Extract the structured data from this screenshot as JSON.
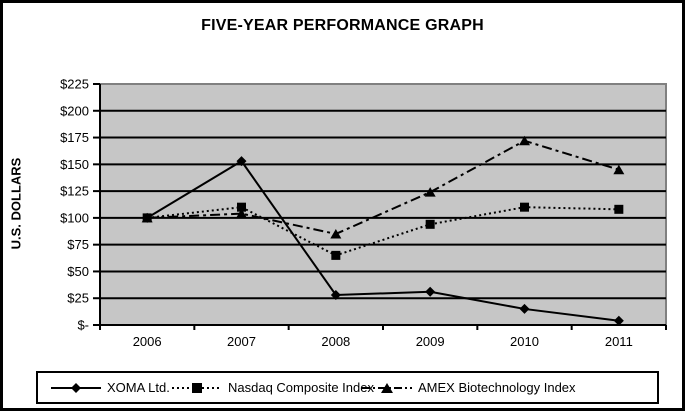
{
  "chart_data": {
    "type": "line",
    "title": "FIVE-YEAR PERFORMANCE GRAPH",
    "xlabel": "",
    "ylabel": "U.S. DOLLARS",
    "categories": [
      "2006",
      "2007",
      "2008",
      "2009",
      "2010",
      "2011"
    ],
    "series": [
      {
        "name": "XOMA Ltd.",
        "marker": "diamond",
        "line_style": "solid",
        "values": [
          100,
          153,
          28,
          31,
          15,
          4
        ]
      },
      {
        "name": "Nasdaq Composite Index",
        "marker": "square",
        "line_style": "dotted",
        "values": [
          100,
          110,
          65,
          94,
          110,
          108
        ]
      },
      {
        "name": "AMEX Biotechnology Index",
        "marker": "triangle",
        "line_style": "dashdot",
        "values": [
          100,
          104,
          85,
          124,
          172,
          145
        ]
      }
    ],
    "y_ticks": [
      {
        "label": "$-",
        "value": 0
      },
      {
        "label": "$25",
        "value": 25
      },
      {
        "label": "$50",
        "value": 50
      },
      {
        "label": "$75",
        "value": 75
      },
      {
        "label": "$100",
        "value": 100
      },
      {
        "label": "$125",
        "value": 125
      },
      {
        "label": "$150",
        "value": 150
      },
      {
        "label": "$175",
        "value": 175
      },
      {
        "label": "$200",
        "value": 200
      },
      {
        "label": "$225",
        "value": 225
      }
    ],
    "ylim": [
      0,
      225
    ],
    "grid": true,
    "legend_position": "bottom",
    "colors": {
      "line": "#000000",
      "plot_background": "#c6c6c6",
      "plot_border": "#808080",
      "text": "#000000",
      "page_background": "#ffffff"
    }
  }
}
